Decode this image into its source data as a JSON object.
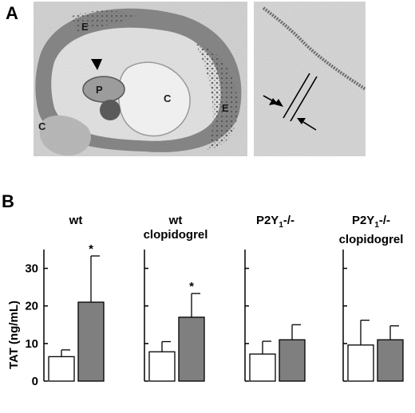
{
  "panel_a": {
    "letter": "A",
    "labels": {
      "e_top": "E",
      "e_right": "E",
      "p": "P",
      "c_left": "C",
      "c_center": "C"
    }
  },
  "panel_b": {
    "letter": "B"
  },
  "chart_data": {
    "type": "bar",
    "ylabel": "TAT (ng/mL)",
    "ylim": [
      0,
      35
    ],
    "yticks": [
      0,
      10,
      20,
      30
    ],
    "groups": [
      {
        "label_line1": "wt",
        "label_line2": "",
        "label_sub": "",
        "label_tail": "",
        "bars": [
          {
            "fill": "white",
            "value": 6.5,
            "error": 1.8,
            "significant": false
          },
          {
            "fill": "gray",
            "value": 21.0,
            "error": 12.3,
            "significant": true
          }
        ]
      },
      {
        "label_line1": "wt",
        "label_line2": "clopidogrel",
        "label_sub": "",
        "label_tail": "",
        "bars": [
          {
            "fill": "white",
            "value": 7.8,
            "error": 2.7,
            "significant": false
          },
          {
            "fill": "gray",
            "value": 17.0,
            "error": 6.3,
            "significant": true
          }
        ]
      },
      {
        "label_line1": "P2Y",
        "label_line2": "",
        "label_sub": "1",
        "label_tail": "-/-",
        "bars": [
          {
            "fill": "white",
            "value": 7.2,
            "error": 3.4,
            "significant": false
          },
          {
            "fill": "gray",
            "value": 11.0,
            "error": 4.0,
            "significant": false
          }
        ]
      },
      {
        "label_line1": "P2Y",
        "label_line2": "clopidogrel",
        "label_sub": "1",
        "label_tail": "-/-",
        "bars": [
          {
            "fill": "white",
            "value": 9.6,
            "error": 6.6,
            "significant": false
          },
          {
            "fill": "gray",
            "value": 11.0,
            "error": 3.7,
            "significant": false
          }
        ]
      }
    ],
    "significance_marker": "*",
    "colors": {
      "white_bar": "#ffffff",
      "gray_bar": "#7f7f7f",
      "axis": "#000000"
    }
  }
}
